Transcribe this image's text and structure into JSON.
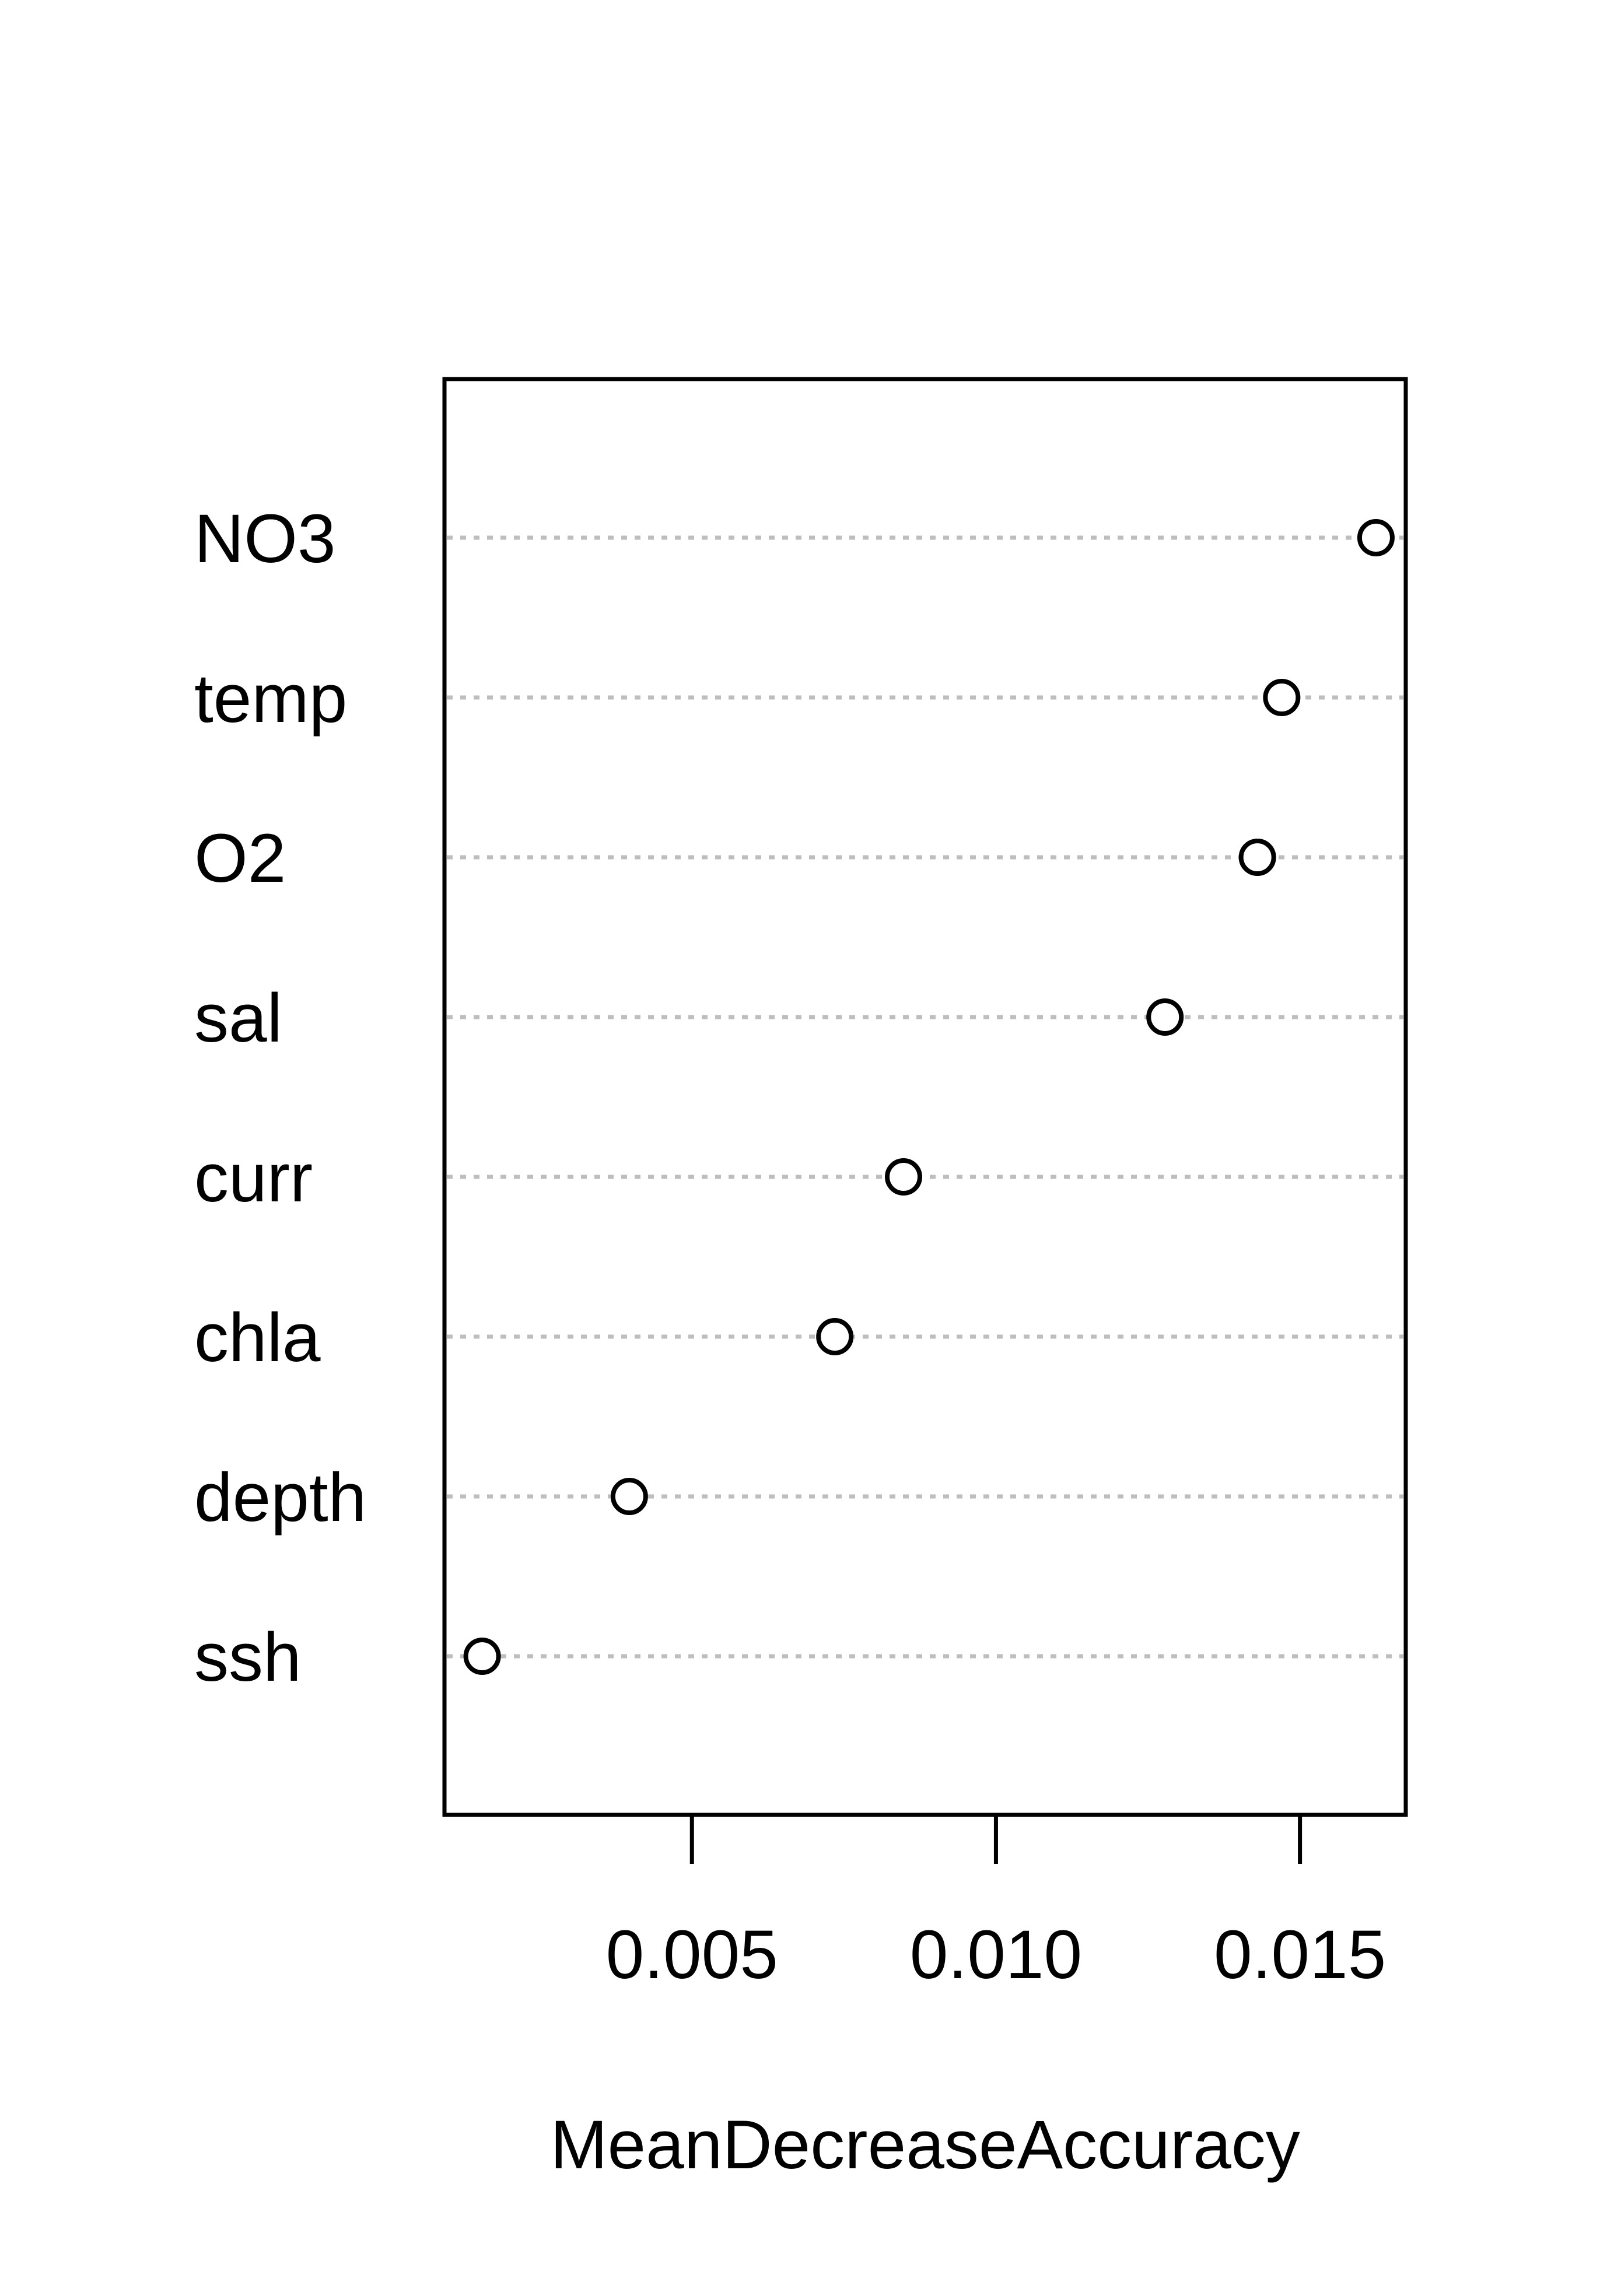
{
  "chart_data": {
    "type": "scatter",
    "subtype": "dotchart",
    "title": "",
    "xlabel": "MeanDecreaseAccuracy",
    "ylabel": "",
    "categories": [
      "NO3",
      "temp",
      "O2",
      "sal",
      "curr",
      "chla",
      "depth",
      "ssh"
    ],
    "values": [
      0.01625,
      0.0147,
      0.0143,
      0.01278,
      0.00848,
      0.00735,
      0.00397,
      0.00155
    ],
    "xlim": [
      0.00093,
      0.01674
    ],
    "x_ticks": [
      0.005,
      0.01,
      0.015
    ],
    "x_tick_labels": [
      "0.005",
      "0.010",
      "0.015"
    ],
    "grid": "dotted horizontal guide lines per category",
    "legend": "none",
    "colors": {
      "points": "#000000",
      "guides": "#bebebe",
      "frame": "#000000"
    }
  }
}
